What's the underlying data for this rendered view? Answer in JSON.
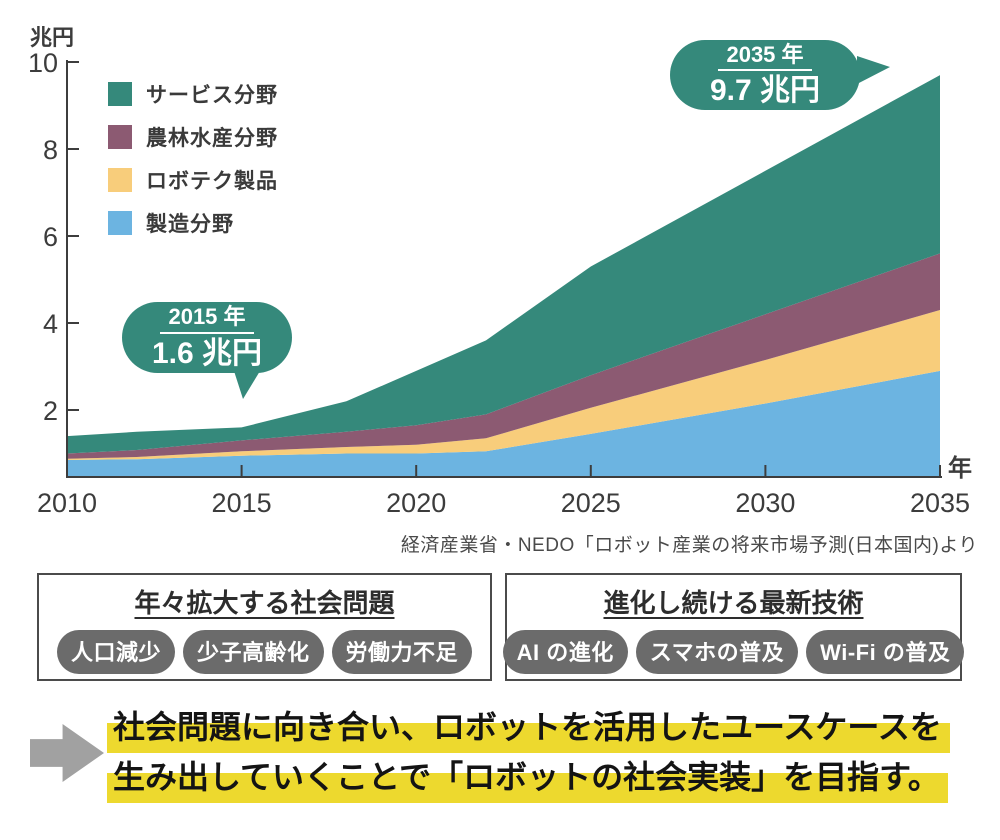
{
  "chart": {
    "y_axis_title": "兆円",
    "x_axis_title": "年",
    "legend": [
      {
        "label": "サービス分野",
        "color": "#35897b"
      },
      {
        "label": "農林水産分野",
        "color": "#8c5a72"
      },
      {
        "label": "ロボテク製品",
        "color": "#f8cd7b"
      },
      {
        "label": "製造分野",
        "color": "#6cb4e1"
      }
    ],
    "callouts": [
      {
        "year_label": "2015 年",
        "value_label": "1.6 兆円"
      },
      {
        "year_label": "2035 年",
        "value_label": "9.7 兆円"
      }
    ],
    "source": "経済産業省・NEDO「ロボット産業の将来市場予測(日本国内)より"
  },
  "chart_data": {
    "type": "area",
    "stacked": true,
    "title": "ロボット産業の将来市場予測(日本国内)",
    "xlabel": "年",
    "ylabel": "兆円",
    "x": [
      2010,
      2012,
      2015,
      2018,
      2020,
      2022,
      2025,
      2030,
      2035
    ],
    "series": [
      {
        "name": "製造分野",
        "color": "#6cb4e1",
        "values": [
          0.85,
          0.87,
          0.95,
          1.0,
          1.0,
          1.05,
          1.45,
          2.15,
          2.9
        ]
      },
      {
        "name": "ロボテク製品",
        "color": "#f8cd7b",
        "values": [
          0.03,
          0.05,
          0.1,
          0.15,
          0.2,
          0.3,
          0.6,
          1.0,
          1.4
        ]
      },
      {
        "name": "農林水産分野",
        "color": "#8c5a72",
        "values": [
          0.12,
          0.16,
          0.25,
          0.35,
          0.45,
          0.55,
          0.75,
          1.05,
          1.3
        ]
      },
      {
        "name": "サービス分野",
        "color": "#35897b",
        "values": [
          0.4,
          0.42,
          0.3,
          0.7,
          1.25,
          1.7,
          2.5,
          3.3,
          4.1
        ]
      }
    ],
    "totals": {
      "2015": 1.6,
      "2035": 9.7
    },
    "y_ticks": [
      2,
      4,
      6,
      8,
      10
    ],
    "x_ticks": [
      2010,
      2015,
      2020,
      2025,
      2030,
      2035
    ],
    "ylim": [
      0,
      10.3
    ],
    "legend_position": "upper-left",
    "grid": false
  },
  "boxes": [
    {
      "title": "年々拡大する社会問題",
      "tags": [
        "人口減少",
        "少子高齢化",
        "労働力不足"
      ]
    },
    {
      "title": "進化し続ける最新技術",
      "tags": [
        "AI の進化",
        "スマホの普及",
        "Wi-Fi の普及"
      ]
    }
  ],
  "conclusion": {
    "line1": "社会問題に向き合い、ロボットを活用したユースケースを",
    "line2": "生み出していくことで「ロボットの社会実装」を目指す。"
  },
  "colors": {
    "accent_teal": "#35897b",
    "area_purple": "#8c5a72",
    "area_yellow": "#f8cd7b",
    "area_blue": "#6cb4e1",
    "highlight_yellow": "#edd92e",
    "pill_gray": "#6b6b6b",
    "arrow_gray": "#a1a1a1",
    "axis_gray": "#3d3d3d"
  }
}
